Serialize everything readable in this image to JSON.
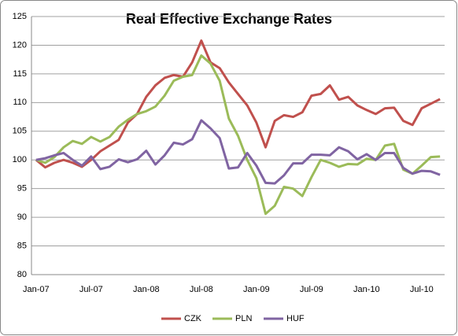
{
  "chart_data": {
    "type": "line",
    "title": "Real Effective Exchange Rates",
    "categories": [
      "Jan-07",
      null,
      null,
      null,
      null,
      null,
      "Jul-07",
      null,
      null,
      null,
      null,
      null,
      "Jan-08",
      null,
      null,
      null,
      null,
      null,
      "Jul-08",
      null,
      null,
      null,
      null,
      null,
      "Jan-09",
      null,
      null,
      null,
      null,
      null,
      "Jul-09",
      null,
      null,
      null,
      null,
      null,
      "Jan-10",
      null,
      null,
      null,
      null,
      null,
      "Jul-10",
      null,
      null
    ],
    "series": [
      {
        "name": "CZK",
        "color": "#c0504d",
        "values": [
          100,
          98.7,
          99.5,
          100,
          99.5,
          98.8,
          100,
          101.5,
          102.5,
          103.5,
          106.5,
          108,
          111,
          113,
          114.3,
          114.8,
          114.5,
          117,
          120.8,
          117,
          116,
          113.5,
          111.5,
          109.5,
          106.5,
          102.2,
          106.8,
          107.8,
          107.5,
          108.3,
          111.2,
          111.5,
          113,
          110.5,
          111,
          109.5,
          108.7,
          108,
          109,
          109.1,
          106.8,
          106.1,
          109,
          109.8,
          110.6
        ]
      },
      {
        "name": "PLN",
        "color": "#9bbb59",
        "values": [
          100,
          99.5,
          100.5,
          102.2,
          103.3,
          102.8,
          104,
          103.2,
          104,
          105.8,
          107,
          108,
          108.5,
          109.3,
          111.2,
          113.8,
          114.5,
          114.8,
          118.2,
          116.8,
          113.8,
          107.2,
          104.2,
          100,
          96.8,
          90.6,
          92,
          95.3,
          95,
          93.7,
          97,
          100,
          99.5,
          98.8,
          99.3,
          99.2,
          100.2,
          100,
          102.5,
          102.8,
          98.3,
          97.6,
          99,
          100.5,
          100.6
        ]
      },
      {
        "name": "HUF",
        "color": "#8064a2",
        "values": [
          100,
          100.3,
          100.8,
          101.2,
          100,
          99,
          100.6,
          98.4,
          98.8,
          100.1,
          99.6,
          100.1,
          101.6,
          99.2,
          100.8,
          103,
          102.7,
          103.6,
          106.9,
          105.5,
          103.8,
          98.5,
          98.7,
          101.2,
          99,
          96,
          95.9,
          97.3,
          99.4,
          99.4,
          100.9,
          100.9,
          100.8,
          102.2,
          101.5,
          100.1,
          101,
          100,
          101.2,
          101.2,
          98.6,
          97.6,
          98.1,
          98,
          97.4
        ]
      }
    ],
    "ylim": [
      80,
      125
    ],
    "yticks": [
      80,
      85,
      90,
      95,
      100,
      105,
      110,
      115,
      120,
      125
    ],
    "grid": true,
    "legend": "bottom"
  }
}
